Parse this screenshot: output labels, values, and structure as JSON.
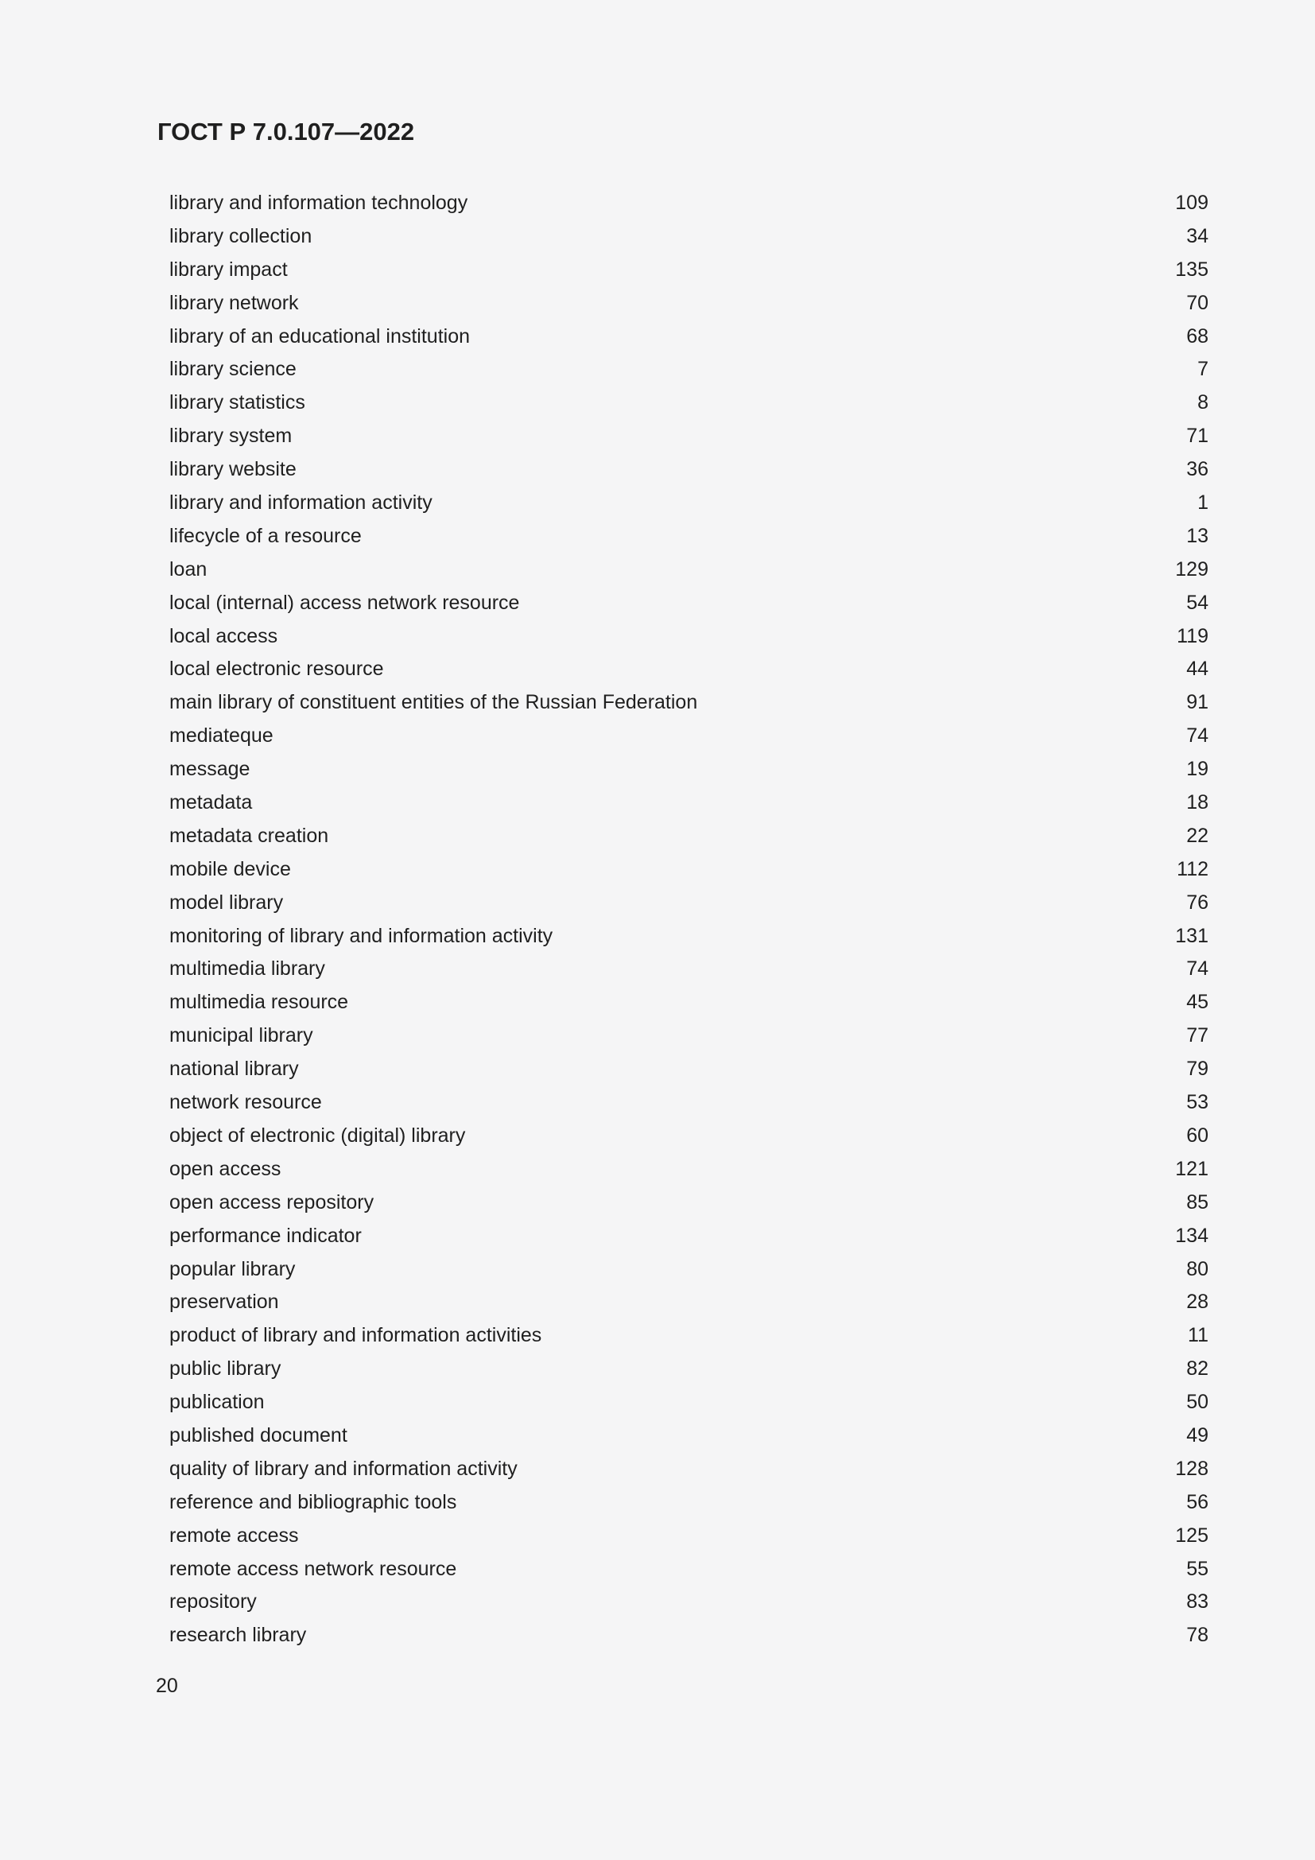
{
  "page": {
    "header": "ГОСТ Р 7.0.107—2022",
    "footer_page_number": "20"
  },
  "colors": {
    "background": "#f5f5f6",
    "text": "#1f1f1f"
  },
  "index": {
    "entries": [
      {
        "term": "library and information technology",
        "page": "109"
      },
      {
        "term": "library collection",
        "page": "34"
      },
      {
        "term": "library impact",
        "page": "135"
      },
      {
        "term": "library network",
        "page": "70"
      },
      {
        "term": "library of an educational institution",
        "page": "68"
      },
      {
        "term": "library science",
        "page": "7"
      },
      {
        "term": "library statistics",
        "page": "8"
      },
      {
        "term": "library system",
        "page": "71"
      },
      {
        "term": "library website",
        "page": "36"
      },
      {
        "term": "library and information activity",
        "page": "1"
      },
      {
        "term": "lifecycle of a resource",
        "page": "13"
      },
      {
        "term": "loan",
        "page": "129"
      },
      {
        "term": "local (internal) access network resource",
        "page": "54"
      },
      {
        "term": "local access",
        "page": "119"
      },
      {
        "term": "local electronic resource",
        "page": "44"
      },
      {
        "term": "main library of constituent entities of the Russian Federation",
        "page": "91"
      },
      {
        "term": "mediateque",
        "page": "74"
      },
      {
        "term": "message",
        "page": "19"
      },
      {
        "term": "metadata",
        "page": "18"
      },
      {
        "term": "metadata creation",
        "page": "22"
      },
      {
        "term": "mobile device",
        "page": "112"
      },
      {
        "term": "model library",
        "page": "76"
      },
      {
        "term": "monitoring of library and information activity",
        "page": "131"
      },
      {
        "term": "multimedia library",
        "page": "74"
      },
      {
        "term": "multimedia resource",
        "page": "45"
      },
      {
        "term": "municipal library",
        "page": "77"
      },
      {
        "term": "national library",
        "page": "79"
      },
      {
        "term": "network resource",
        "page": "53"
      },
      {
        "term": "object of electronic (digital) library",
        "page": "60"
      },
      {
        "term": "open access",
        "page": "121"
      },
      {
        "term": "open access repository",
        "page": "85"
      },
      {
        "term": "performance indicator",
        "page": "134"
      },
      {
        "term": "popular library",
        "page": "80"
      },
      {
        "term": "preservation",
        "page": "28"
      },
      {
        "term": "product of library and information activities",
        "page": "11"
      },
      {
        "term": "public library",
        "page": "82"
      },
      {
        "term": "publication",
        "page": "50"
      },
      {
        "term": "published document",
        "page": "49"
      },
      {
        "term": "quality of library and information activity",
        "page": "128"
      },
      {
        "term": "reference and bibliographic tools",
        "page": "56"
      },
      {
        "term": "remote access",
        "page": "125"
      },
      {
        "term": "remote access network resource",
        "page": "55"
      },
      {
        "term": "repository",
        "page": "83"
      },
      {
        "term": "research library",
        "page": "78"
      }
    ]
  }
}
